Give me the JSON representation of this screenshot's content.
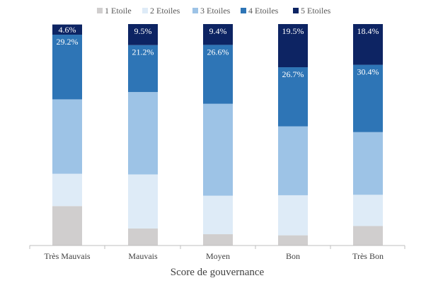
{
  "chart_data": {
    "type": "bar",
    "stacked": true,
    "percent": true,
    "title": "",
    "xlabel": "Score de gouvernance",
    "ylabel": "",
    "ylim": [
      0,
      100
    ],
    "legend_position": "top",
    "categories": [
      "Très Mauvais",
      "Mauvais",
      "Moyen",
      "Bon",
      "Très Bon"
    ],
    "series": [
      {
        "name": "1 Etoile",
        "color": "#d0cece",
        "values": [
          17.8,
          7.7,
          5.1,
          4.6,
          8.8
        ],
        "labels": [
          "",
          "",
          "",
          "",
          ""
        ]
      },
      {
        "name": "2 Etoiles",
        "color": "#deebf7",
        "values": [
          14.6,
          24.4,
          17.4,
          18.1,
          14.1
        ],
        "labels": [
          "",
          "",
          "",
          "",
          ""
        ]
      },
      {
        "name": "3 Etoiles",
        "color": "#9dc3e6",
        "values": [
          33.6,
          37.2,
          41.5,
          31.1,
          28.3
        ],
        "labels": [
          "",
          "",
          "",
          "",
          ""
        ]
      },
      {
        "name": "4 Etoiles",
        "color": "#2e75b6",
        "values": [
          29.2,
          21.2,
          26.6,
          26.7,
          30.4
        ],
        "labels": [
          "29.2%",
          "21.2%",
          "26.6%",
          "26.7%",
          "30.4%"
        ]
      },
      {
        "name": "5 Etoiles",
        "color": "#0d2463",
        "values": [
          4.6,
          9.5,
          9.4,
          19.5,
          18.4
        ],
        "labels": [
          "4.6%",
          "9.5%",
          "9.4%",
          "19.5%",
          "18.4%"
        ]
      }
    ]
  }
}
